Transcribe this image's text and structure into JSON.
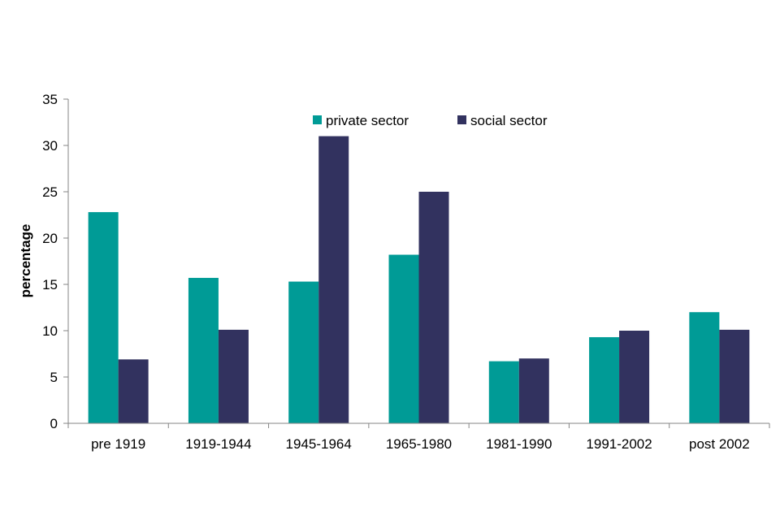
{
  "chart_data": {
    "type": "bar",
    "title": "",
    "xlabel": "",
    "ylabel": "percentage",
    "ylim": [
      0,
      35
    ],
    "yticks": [
      0,
      5,
      10,
      15,
      20,
      25,
      30,
      35
    ],
    "grid": false,
    "legend_position": "top",
    "categories": [
      "pre 1919",
      "1919-1944",
      "1945-1964",
      "1965-1980",
      "1981-1990",
      "1991-2002",
      "post 2002"
    ],
    "series": [
      {
        "name": "private sector",
        "color": "#009b96",
        "values": [
          22.8,
          15.7,
          15.3,
          18.2,
          6.7,
          9.3,
          12.0
        ]
      },
      {
        "name": "social sector",
        "color": "#32325f",
        "values": [
          6.9,
          10.1,
          31.0,
          25.0,
          7.0,
          10.0,
          10.1
        ]
      }
    ]
  }
}
